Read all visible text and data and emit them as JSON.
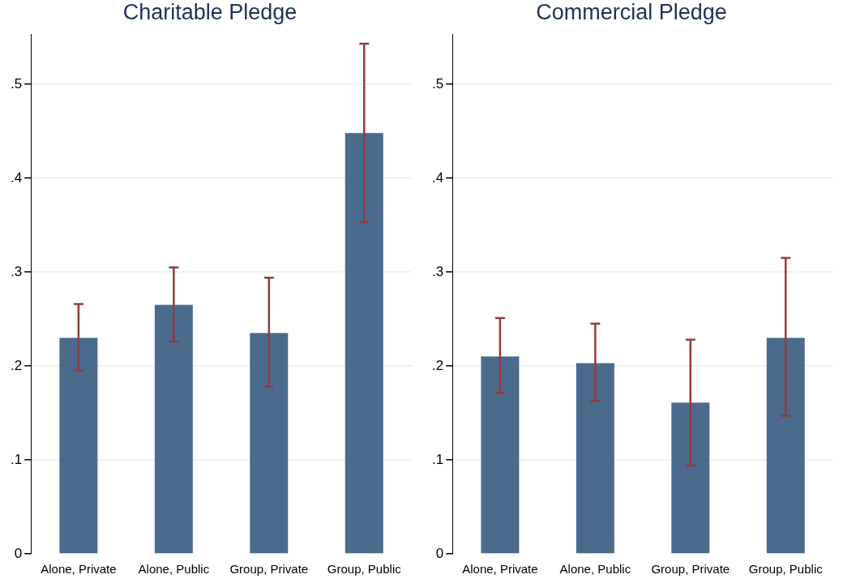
{
  "chart_data": [
    {
      "type": "bar",
      "title": "Charitable Pledge",
      "categories": [
        "Alone, Private",
        "Alone, Public",
        "Group, Private",
        "Group, Public"
      ],
      "values": [
        0.23,
        0.265,
        0.235,
        0.448
      ],
      "color": "#4a6b8c",
      "errors": [
        [
          0.195,
          0.266
        ],
        [
          0.226,
          0.305
        ],
        [
          0.178,
          0.294
        ],
        [
          0.353,
          0.543
        ]
      ],
      "ylim": [
        0,
        0.553
      ],
      "yticks": [
        {
          "value": 0,
          "label": "0"
        },
        {
          "value": 0.1,
          "label": ".1"
        },
        {
          "value": 0.2,
          "label": ".2"
        },
        {
          "value": 0.3,
          "label": ".3"
        },
        {
          "value": 0.4,
          "label": ".4"
        },
        {
          "value": 0.5,
          "label": ".5"
        }
      ],
      "grid": "y"
    },
    {
      "type": "bar",
      "title": "Commercial Pledge",
      "categories": [
        "Alone, Private",
        "Alone, Public",
        "Group, Private",
        "Group, Public"
      ],
      "values": [
        0.21,
        0.203,
        0.161,
        0.23
      ],
      "color": "#4a6b8c",
      "errors": [
        [
          0.171,
          0.251
        ],
        [
          0.163,
          0.245
        ],
        [
          0.094,
          0.228
        ],
        [
          0.147,
          0.315
        ]
      ],
      "ylim": [
        0,
        0.553
      ],
      "yticks": [
        {
          "value": 0,
          "label": "0"
        },
        {
          "value": 0.1,
          "label": ".1"
        },
        {
          "value": 0.2,
          "label": ".2"
        },
        {
          "value": 0.3,
          "label": ".3"
        },
        {
          "value": 0.4,
          "label": ".4"
        },
        {
          "value": 0.5,
          "label": ".5"
        }
      ],
      "grid": "y"
    }
  ]
}
